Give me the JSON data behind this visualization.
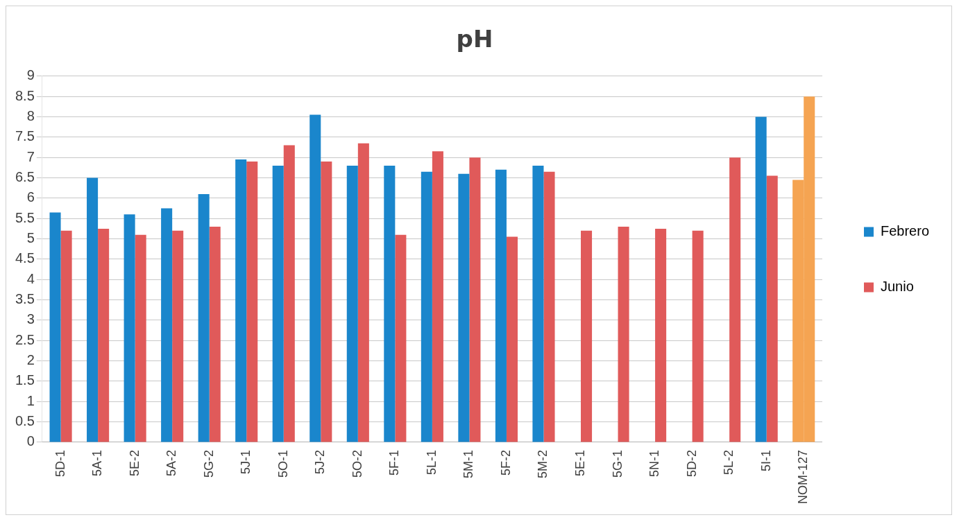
{
  "chart_data": {
    "type": "bar",
    "title": "pH",
    "categories": [
      "5D-1",
      "5A-1",
      "5E-2",
      "5A-2",
      "5G-2",
      "5J-1",
      "5O-1",
      "5J-2",
      "5O-2",
      "5F-1",
      "5L-1",
      "5M-1",
      "5F-2",
      "5M-2",
      "5E-1",
      "5G-1",
      "5N-1",
      "5D-2",
      "5L-2",
      "5I-1",
      "NOM-127"
    ],
    "series": [
      {
        "name": "Febrero",
        "color": "#1a86cc",
        "colors": [
          "#1a86cc",
          "#1a86cc",
          "#1a86cc",
          "#1a86cc",
          "#1a86cc",
          "#1a86cc",
          "#1a86cc",
          "#1a86cc",
          "#1a86cc",
          "#1a86cc",
          "#1a86cc",
          "#1a86cc",
          "#1a86cc",
          "#1a86cc",
          "#1a86cc",
          "#1a86cc",
          "#1a86cc",
          "#1a86cc",
          "#1a86cc",
          "#1a86cc",
          "#f5a452"
        ],
        "values": [
          5.65,
          6.5,
          5.6,
          5.75,
          6.1,
          6.95,
          6.8,
          8.05,
          6.8,
          6.8,
          6.65,
          6.6,
          6.7,
          6.8,
          null,
          null,
          null,
          null,
          null,
          8.0,
          6.45
        ]
      },
      {
        "name": "Junio",
        "color": "#e05a5a",
        "colors": [
          "#e05a5a",
          "#e05a5a",
          "#e05a5a",
          "#e05a5a",
          "#e05a5a",
          "#e05a5a",
          "#e05a5a",
          "#e05a5a",
          "#e05a5a",
          "#e05a5a",
          "#e05a5a",
          "#e05a5a",
          "#e05a5a",
          "#e05a5a",
          "#e05a5a",
          "#e05a5a",
          "#e05a5a",
          "#e05a5a",
          "#e05a5a",
          "#e05a5a",
          "#f5a452"
        ],
        "values": [
          5.2,
          5.25,
          5.1,
          5.2,
          5.3,
          6.9,
          7.3,
          6.9,
          7.35,
          5.1,
          7.15,
          7.0,
          5.05,
          6.65,
          5.2,
          5.3,
          5.25,
          5.2,
          7.0,
          6.55,
          8.5
        ]
      }
    ],
    "ylim": [
      0,
      9
    ],
    "yticks": [
      0,
      0.5,
      1,
      1.5,
      2,
      2.5,
      3,
      3.5,
      4,
      4.5,
      5,
      5.5,
      6,
      6.5,
      7,
      7.5,
      8,
      8.5,
      9
    ],
    "grid": "y",
    "legend": "right"
  }
}
